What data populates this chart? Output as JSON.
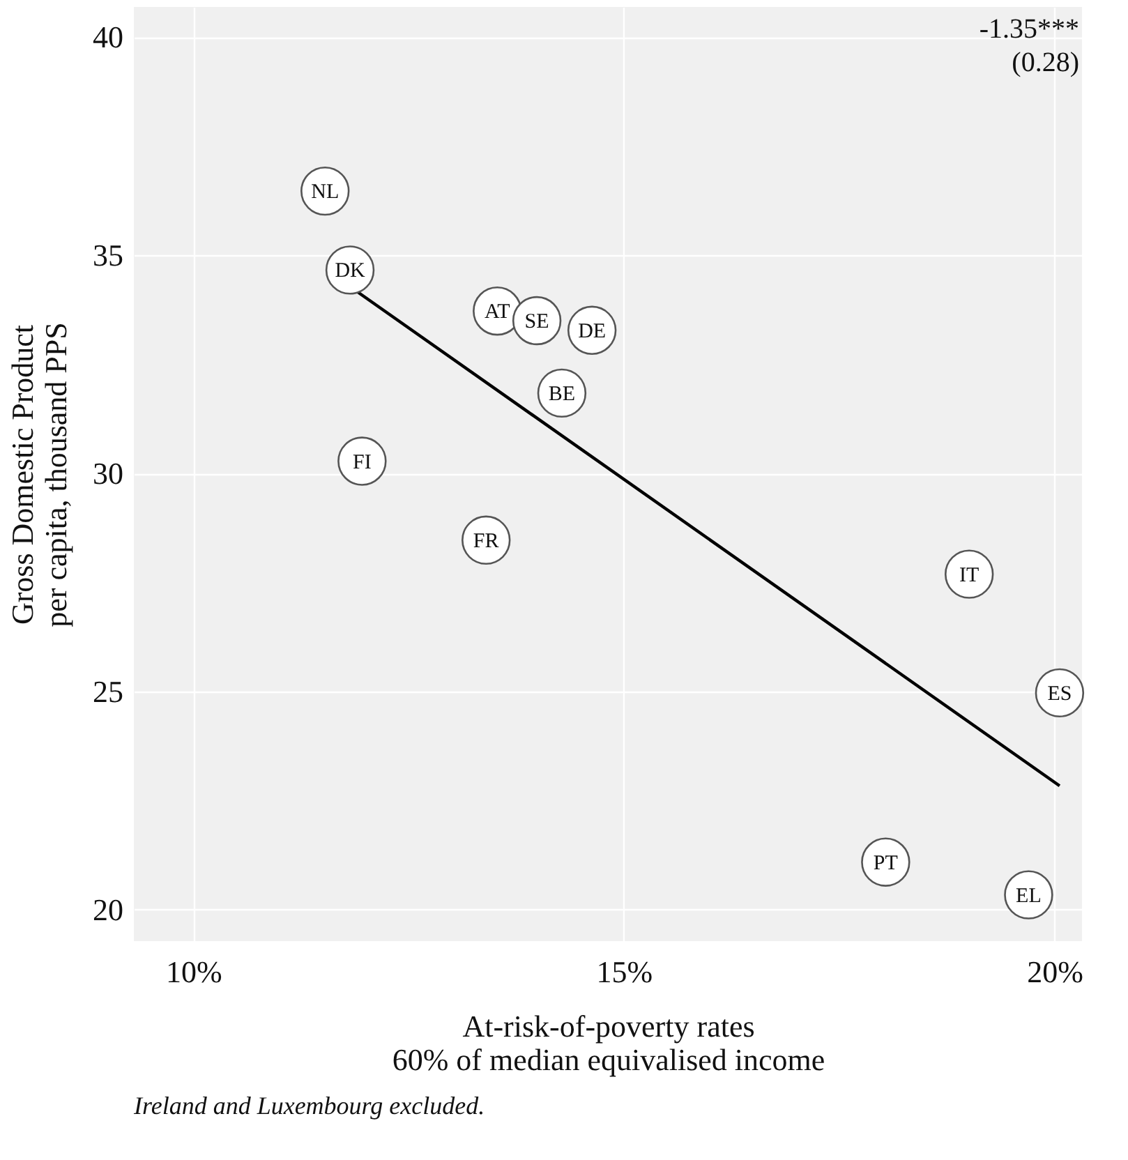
{
  "chart_data": {
    "type": "scatter",
    "xlabel": "At-risk-of-poverty rates\n60% of median equivalised income",
    "ylabel": "Gross Domestic Product\nper capita, thousand PPS",
    "x": [
      11.53,
      11.82,
      13.53,
      13.99,
      14.63,
      14.28,
      11.96,
      13.4,
      19.01,
      20.06,
      18.04,
      19.7
    ],
    "series": [
      {
        "color": "#ffffff",
        "marker": "circle",
        "values": [
          36.47,
          34.66,
          33.72,
          33.5,
          33.28,
          31.84,
          30.28,
          28.47,
          27.69,
          24.97,
          21.09,
          20.34
        ]
      },
      {
        "type": "line",
        "color": "#000000",
        "x": [
          11.82,
          20.06
        ],
        "values": [
          34.28,
          22.84
        ]
      }
    ],
    "xlim": [
      9.31,
      20.32
    ],
    "xticks": [
      {
        "value": 10,
        "label": "10%"
      },
      {
        "value": 15,
        "label": "15%"
      },
      {
        "value": 20,
        "label": "20%"
      }
    ],
    "ylim": [
      19.28,
      40.69
    ],
    "yticks": [
      20,
      25,
      30,
      35,
      40
    ],
    "grid": true,
    "annotations": [
      "-1.35***\n(0.28)",
      "Ireland and Luxembourg excluded.",
      {
        "text": "NL",
        "x": 11.53,
        "y": 36.47
      },
      {
        "text": "DK",
        "x": 11.82,
        "y": 34.66
      },
      {
        "text": "AT",
        "x": 13.53,
        "y": 33.72
      },
      {
        "text": "SE",
        "x": 13.99,
        "y": 33.5
      },
      {
        "text": "DE",
        "x": 14.63,
        "y": 33.28
      },
      {
        "text": "BE",
        "x": 14.28,
        "y": 31.84
      },
      {
        "text": "FI",
        "x": 11.96,
        "y": 30.28
      },
      {
        "text": "FR",
        "x": 13.4,
        "y": 28.47
      },
      {
        "text": "IT",
        "x": 19.01,
        "y": 27.69
      },
      {
        "text": "ES",
        "x": 20.06,
        "y": 24.97
      },
      {
        "text": "PT",
        "x": 18.04,
        "y": 21.09
      },
      {
        "text": "EL",
        "x": 19.7,
        "y": 20.34
      }
    ]
  }
}
